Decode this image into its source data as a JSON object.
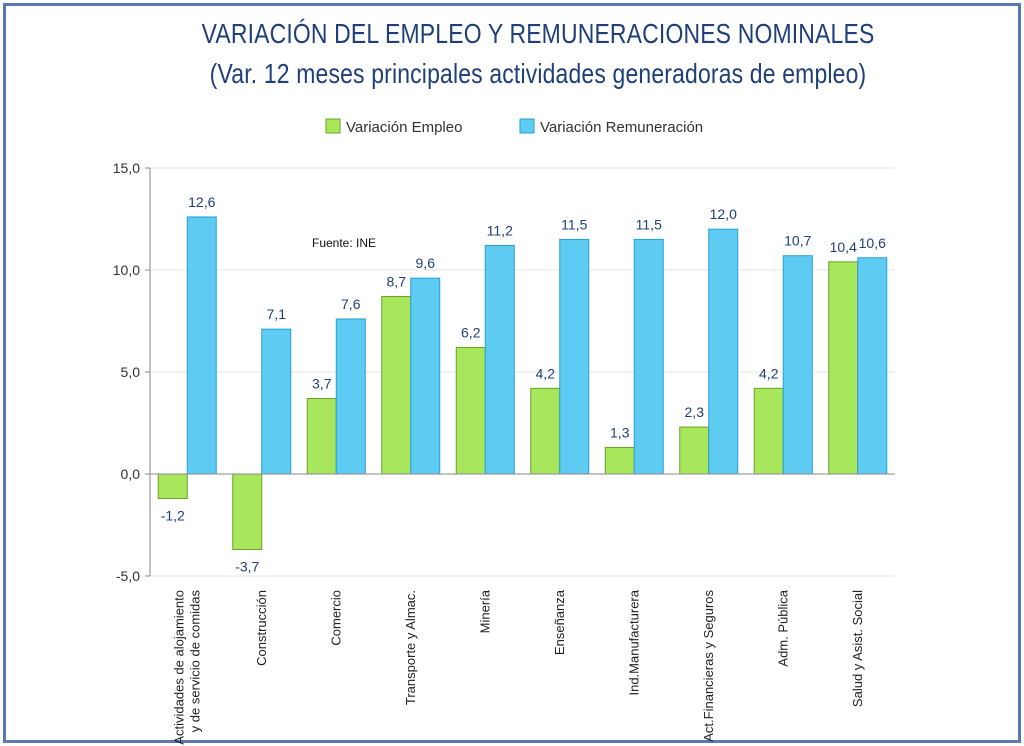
{
  "chart_data": {
    "type": "bar",
    "title": "VARIACIÓN DEL EMPLEO Y REMUNERACIONES NOMINALES",
    "subtitle": "(Var. 12 meses principales actividades generadoras de empleo)",
    "annotation": "Fuente: INE",
    "categories": [
      [
        "Actividades de alojamiento",
        "y de servicio de comidas"
      ],
      [
        "Construcción"
      ],
      [
        "Comercio"
      ],
      [
        "Transporte y Almac."
      ],
      [
        "Minería"
      ],
      [
        "Enseñanza"
      ],
      [
        "Ind.Manufacturera"
      ],
      [
        "Act.Financieras y Seguros"
      ],
      [
        "Adm. Pública"
      ],
      [
        "Salud y Asist. Social"
      ]
    ],
    "series": [
      {
        "name": "Variación Empleo",
        "color": "#a8e65c",
        "stroke": "#6aa32a",
        "values": [
          -1.2,
          -3.7,
          3.7,
          8.7,
          6.2,
          4.2,
          1.3,
          2.3,
          4.2,
          10.4
        ],
        "labels": [
          "-1,2",
          "-3,7",
          "3,7",
          "8,7",
          "6,2",
          "4,2",
          "1,3",
          "2,3",
          "4,2",
          "10,4"
        ]
      },
      {
        "name": "Variación Remuneración",
        "color": "#5dcbf2",
        "stroke": "#2a9fd0",
        "values": [
          12.6,
          7.1,
          7.6,
          9.6,
          11.2,
          11.5,
          11.5,
          12.0,
          10.7,
          10.6
        ],
        "labels": [
          "12,6",
          "7,1",
          "7,6",
          "9,6",
          "11,2",
          "11,5",
          "11,5",
          "12,0",
          "10,7",
          "10,6"
        ]
      }
    ],
    "ylim": [
      -5,
      15
    ],
    "yticks": [
      -5,
      0,
      5,
      10,
      15
    ],
    "ytick_labels": [
      "-5,0",
      "0,0",
      "5,0",
      "10,0",
      "15,0"
    ],
    "grid": true,
    "legend_position": "top-center"
  },
  "colors": {
    "title": "#1f3f7a",
    "axis_text": "#333333",
    "label_text": "#1f3f7a",
    "frame": "#5a78b4"
  }
}
